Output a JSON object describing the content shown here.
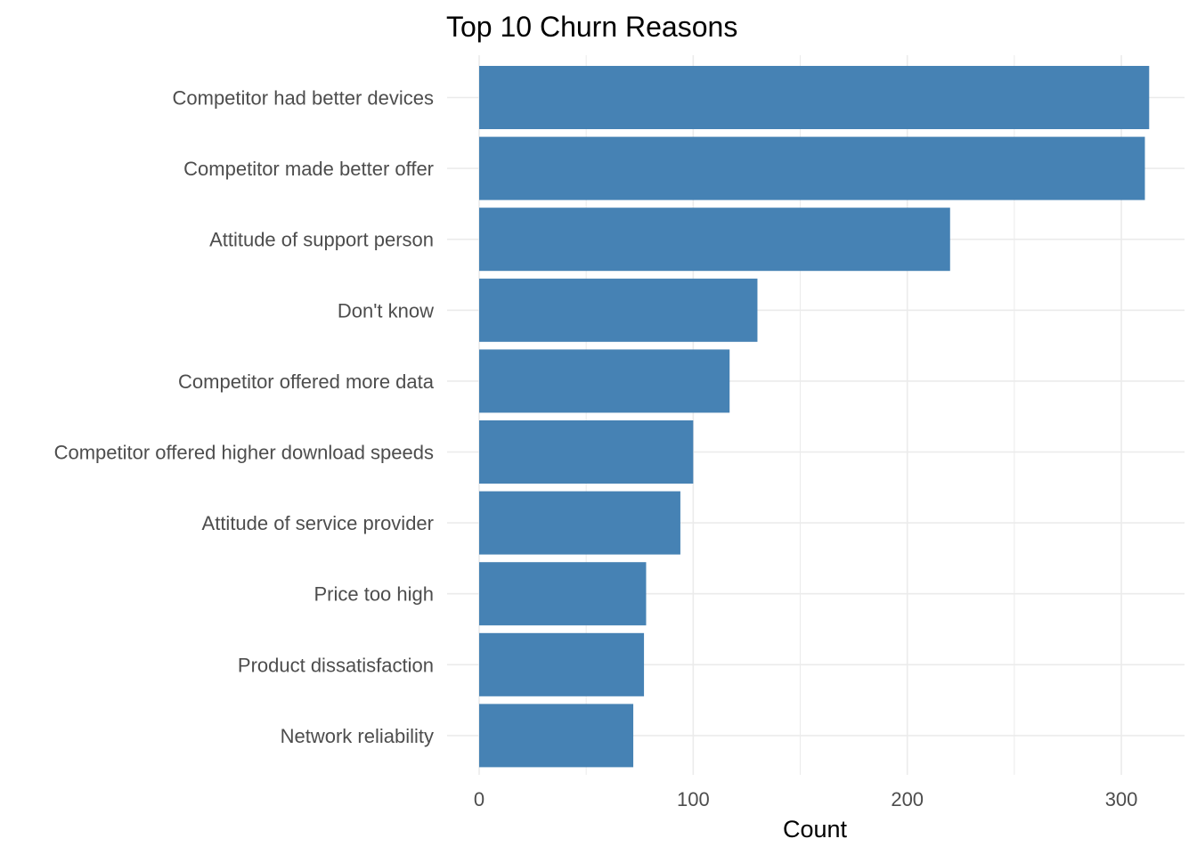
{
  "chart_data": {
    "type": "bar",
    "orientation": "horizontal",
    "title": "Top 10 Churn Reasons",
    "xlabel": "Count",
    "ylabel": "",
    "categories": [
      "Competitor had better devices",
      "Competitor made better offer",
      "Attitude of support person",
      "Don't know",
      "Competitor offered more data",
      "Competitor offered higher download speeds",
      "Attitude of service provider",
      "Price too high",
      "Product dissatisfaction",
      "Network reliability"
    ],
    "values": [
      313,
      311,
      220,
      130,
      117,
      100,
      94,
      78,
      77,
      72
    ],
    "xlim": [
      0,
      330
    ],
    "x_ticks": [
      0,
      100,
      200,
      300
    ],
    "x_tick_labels": [
      "0",
      "100",
      "200",
      "300"
    ],
    "bar_color": "#4682b4",
    "grid": true,
    "legend": "none"
  }
}
